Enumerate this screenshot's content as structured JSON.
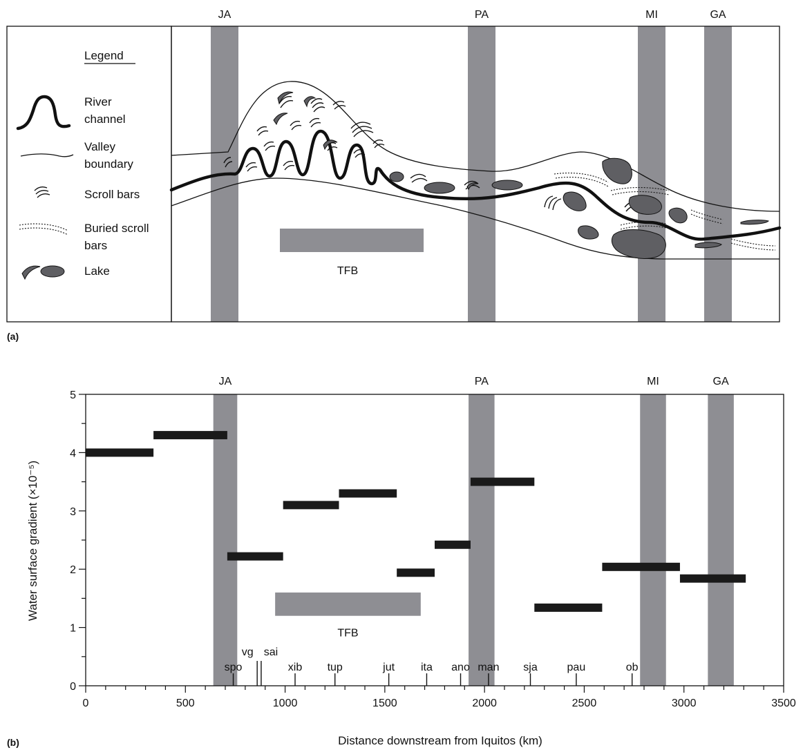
{
  "colors": {
    "zone": "#8e8e93",
    "tfb": "#8e8e93",
    "ink": "#111111",
    "lake": "#5f5f63",
    "bar": "#1a1a1a"
  },
  "panel_a": {
    "label": "(a)",
    "zone_labels": [
      "JA",
      "PA",
      "MI",
      "GA"
    ],
    "tfb_label": "TFB",
    "legend": {
      "title": "Legend",
      "items": [
        {
          "icon": "river-channel-icon",
          "label_line1": "River",
          "label_line2": "channel"
        },
        {
          "icon": "valley-boundary-icon",
          "label_line1": "Valley",
          "label_line2": "boundary"
        },
        {
          "icon": "scroll-bars-icon",
          "label_line1": "Scroll bars",
          "label_line2": ""
        },
        {
          "icon": "buried-scroll-bars-icon",
          "label_line1": "Buried scroll",
          "label_line2": "bars"
        },
        {
          "icon": "lake-icon",
          "label_line1": "Lake",
          "label_line2": ""
        }
      ]
    }
  },
  "panel_b": {
    "label": "(b)",
    "zone_labels": [
      "JA",
      "PA",
      "MI",
      "GA"
    ],
    "tfb_label": "TFB"
  },
  "chart_data": {
    "type": "bar",
    "subtype": "horizontal range segments",
    "xlabel": "Distance downstream from Iquitos (km)",
    "ylabel": "Water surface gradient (×10⁻⁵)",
    "xlim": [
      0,
      3500
    ],
    "ylim": [
      0,
      5
    ],
    "xticks": [
      0,
      500,
      1000,
      1500,
      2000,
      2500,
      3000,
      3500
    ],
    "yticks": [
      0,
      1,
      2,
      3,
      4,
      5
    ],
    "zones": [
      {
        "name": "JA",
        "x": [
          640,
          760
        ]
      },
      {
        "name": "PA",
        "x": [
          1920,
          2050
        ]
      },
      {
        "name": "MI",
        "x": [
          2780,
          2910
        ]
      },
      {
        "name": "GA",
        "x": [
          3120,
          3250
        ]
      }
    ],
    "tfb": {
      "name": "TFB",
      "x": [
        950,
        1680
      ],
      "y": [
        1.2,
        1.6
      ]
    },
    "segments": [
      {
        "x": [
          0,
          340
        ],
        "y": 4.0
      },
      {
        "x": [
          340,
          710
        ],
        "y": 4.3
      },
      {
        "x": [
          710,
          990
        ],
        "y": 2.22
      },
      {
        "x": [
          990,
          1270
        ],
        "y": 3.1
      },
      {
        "x": [
          1270,
          1560
        ],
        "y": 3.3
      },
      {
        "x": [
          1560,
          1750
        ],
        "y": 1.94
      },
      {
        "x": [
          1750,
          1930
        ],
        "y": 2.42
      },
      {
        "x": [
          1930,
          2250
        ],
        "y": 3.5
      },
      {
        "x": [
          2250,
          2590
        ],
        "y": 1.34
      },
      {
        "x": [
          2590,
          2980
        ],
        "y": 2.04
      },
      {
        "x": [
          2980,
          3310
        ],
        "y": 1.84
      }
    ],
    "stations": [
      {
        "name": "spo",
        "x": 740
      },
      {
        "name": "vg",
        "x": 860
      },
      {
        "name": "sai",
        "x": 880
      },
      {
        "name": "xib",
        "x": 1050
      },
      {
        "name": "tup",
        "x": 1250
      },
      {
        "name": "jut",
        "x": 1520
      },
      {
        "name": "ita",
        "x": 1710
      },
      {
        "name": "ano",
        "x": 1880
      },
      {
        "name": "man",
        "x": 2020
      },
      {
        "name": "sja",
        "x": 2230
      },
      {
        "name": "pau",
        "x": 2460
      },
      {
        "name": "ob",
        "x": 2740
      }
    ]
  }
}
